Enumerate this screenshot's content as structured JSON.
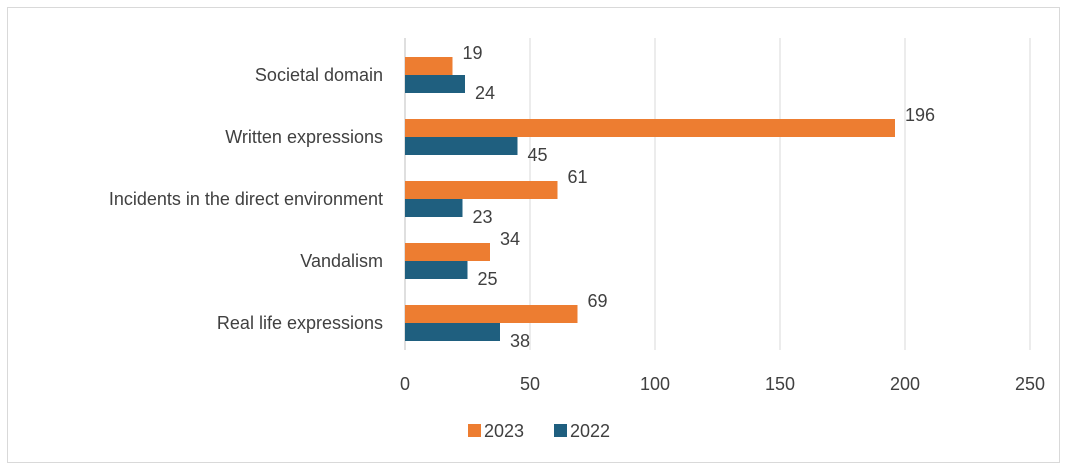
{
  "chart_data": {
    "type": "bar",
    "orientation": "horizontal",
    "categories": [
      "Societal domain",
      "Written expressions",
      "Incidents in the direct environment",
      "Vandalism",
      "Real life expressions"
    ],
    "series": [
      {
        "name": "2023",
        "values": [
          19,
          196,
          61,
          34,
          69
        ],
        "color": "#ed7d31"
      },
      {
        "name": "2022",
        "values": [
          24,
          45,
          23,
          25,
          38
        ],
        "color": "#1f5f7f"
      }
    ],
    "xlim": [
      0,
      250
    ],
    "xticks": [
      0,
      50,
      100,
      150,
      200,
      250
    ],
    "grid": true,
    "legend_position": "bottom",
    "title": "",
    "xlabel": "",
    "ylabel": ""
  }
}
